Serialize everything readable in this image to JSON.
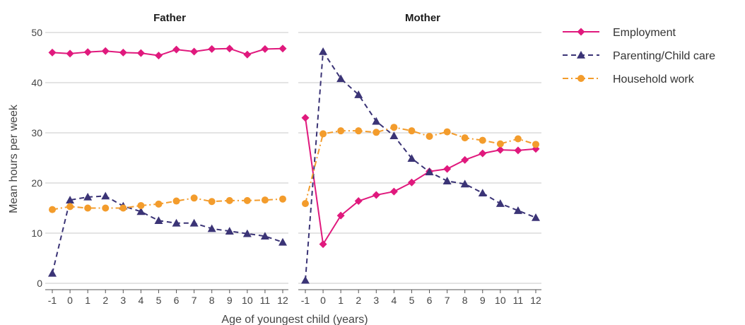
{
  "chart_data": {
    "type": "line",
    "ylabel": "Mean hours per week",
    "xlabel": "Age of youngest child (years)",
    "ylim": [
      0,
      50
    ],
    "yticks": [
      "0",
      "10",
      "20",
      "30",
      "40",
      "50"
    ],
    "x": [
      -1,
      0,
      1,
      2,
      3,
      4,
      5,
      6,
      7,
      8,
      9,
      10,
      11,
      12
    ],
    "xticks": [
      "-1",
      "0",
      "1",
      "2",
      "3",
      "4",
      "5",
      "6",
      "7",
      "8",
      "9",
      "10",
      "11",
      "12"
    ],
    "grid": "horizontal",
    "legend_position": "right",
    "series_styles": [
      {
        "name": "Employment",
        "color": "#e0197d",
        "marker": "diamond",
        "dash": "solid"
      },
      {
        "name": "Parenting/Child care",
        "color": "#3b3476",
        "marker": "triangle",
        "dash": "dashed"
      },
      {
        "name": "Household work",
        "color": "#f39c2c",
        "marker": "circle",
        "dash": "dashdot"
      }
    ],
    "panels": [
      {
        "title": "Father",
        "series": [
          {
            "name": "Employment",
            "values": [
              46.0,
              45.8,
              46.1,
              46.3,
              46.0,
              45.9,
              45.4,
              46.6,
              46.2,
              46.7,
              46.8,
              45.6,
              46.7,
              46.8
            ]
          },
          {
            "name": "Parenting/Child care",
            "values": [
              2.0,
              16.6,
              17.2,
              17.4,
              15.4,
              14.3,
              12.5,
              12.0,
              12.0,
              10.9,
              10.4,
              9.9,
              9.4,
              8.2
            ]
          },
          {
            "name": "Household work",
            "values": [
              14.7,
              15.3,
              15.0,
              15.0,
              15.0,
              15.5,
              15.8,
              16.4,
              17.0,
              16.3,
              16.5,
              16.5,
              16.6,
              16.8
            ]
          }
        ]
      },
      {
        "title": "Mother",
        "series": [
          {
            "name": "Employment",
            "values": [
              33.0,
              7.8,
              13.5,
              16.4,
              17.6,
              18.3,
              20.1,
              22.3,
              22.8,
              24.6,
              25.9,
              26.6,
              26.5,
              26.8
            ]
          },
          {
            "name": "Parenting/Child care",
            "values": [
              0.6,
              46.2,
              40.8,
              37.6,
              32.3,
              29.4,
              24.9,
              22.2,
              20.4,
              19.8,
              18.0,
              15.9,
              14.5,
              13.1
            ]
          },
          {
            "name": "Household work",
            "values": [
              15.9,
              29.8,
              30.4,
              30.4,
              30.1,
              31.1,
              30.4,
              29.3,
              30.2,
              29.0,
              28.5,
              27.8,
              28.8,
              27.7
            ]
          }
        ]
      }
    ]
  }
}
